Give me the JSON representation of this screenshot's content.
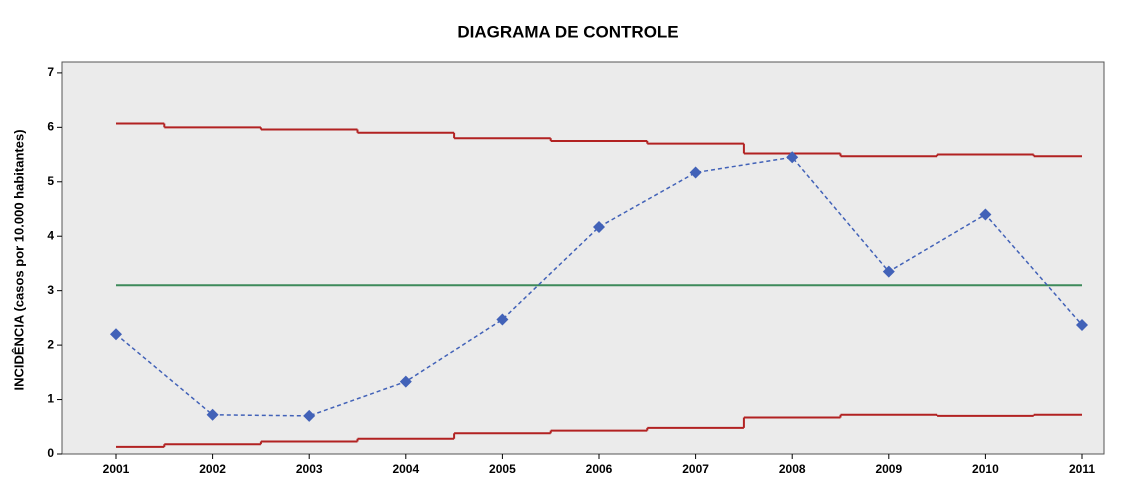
{
  "chart_data": {
    "type": "line",
    "title": "DIAGRAMA DE CONTROLE",
    "y_label": "INCIDÊNCIA (casos por 10.000 habitantes)",
    "categories": [
      "2001",
      "2002",
      "2003",
      "2004",
      "2005",
      "2006",
      "2007",
      "2008",
      "2009",
      "2010",
      "2011"
    ],
    "series": [
      {
        "color": "#b22222",
        "style": "step",
        "values": [
          6.07,
          6.0,
          5.96,
          5.9,
          5.8,
          5.75,
          5.7,
          5.52,
          5.47,
          5.5,
          5.47
        ]
      },
      {
        "color": "#b22222",
        "style": "step",
        "values": [
          0.13,
          0.18,
          0.23,
          0.28,
          0.38,
          0.43,
          0.48,
          0.67,
          0.72,
          0.7,
          0.72
        ]
      },
      {
        "color": "#3d8a5a",
        "style": "solid",
        "values": [
          3.1,
          3.1,
          3.1,
          3.1,
          3.1,
          3.1,
          3.1,
          3.1,
          3.1,
          3.1,
          3.1
        ]
      },
      {
        "color": "#4262b8",
        "style": "dashed-markers",
        "values": [
          2.2,
          0.72,
          0.7,
          1.33,
          2.47,
          4.17,
          5.17,
          5.45,
          3.35,
          4.4,
          2.37
        ]
      }
    ],
    "ylim": [
      0,
      7.2
    ],
    "yticks": [
      0,
      1,
      2,
      3,
      4,
      5,
      6,
      7
    ]
  }
}
